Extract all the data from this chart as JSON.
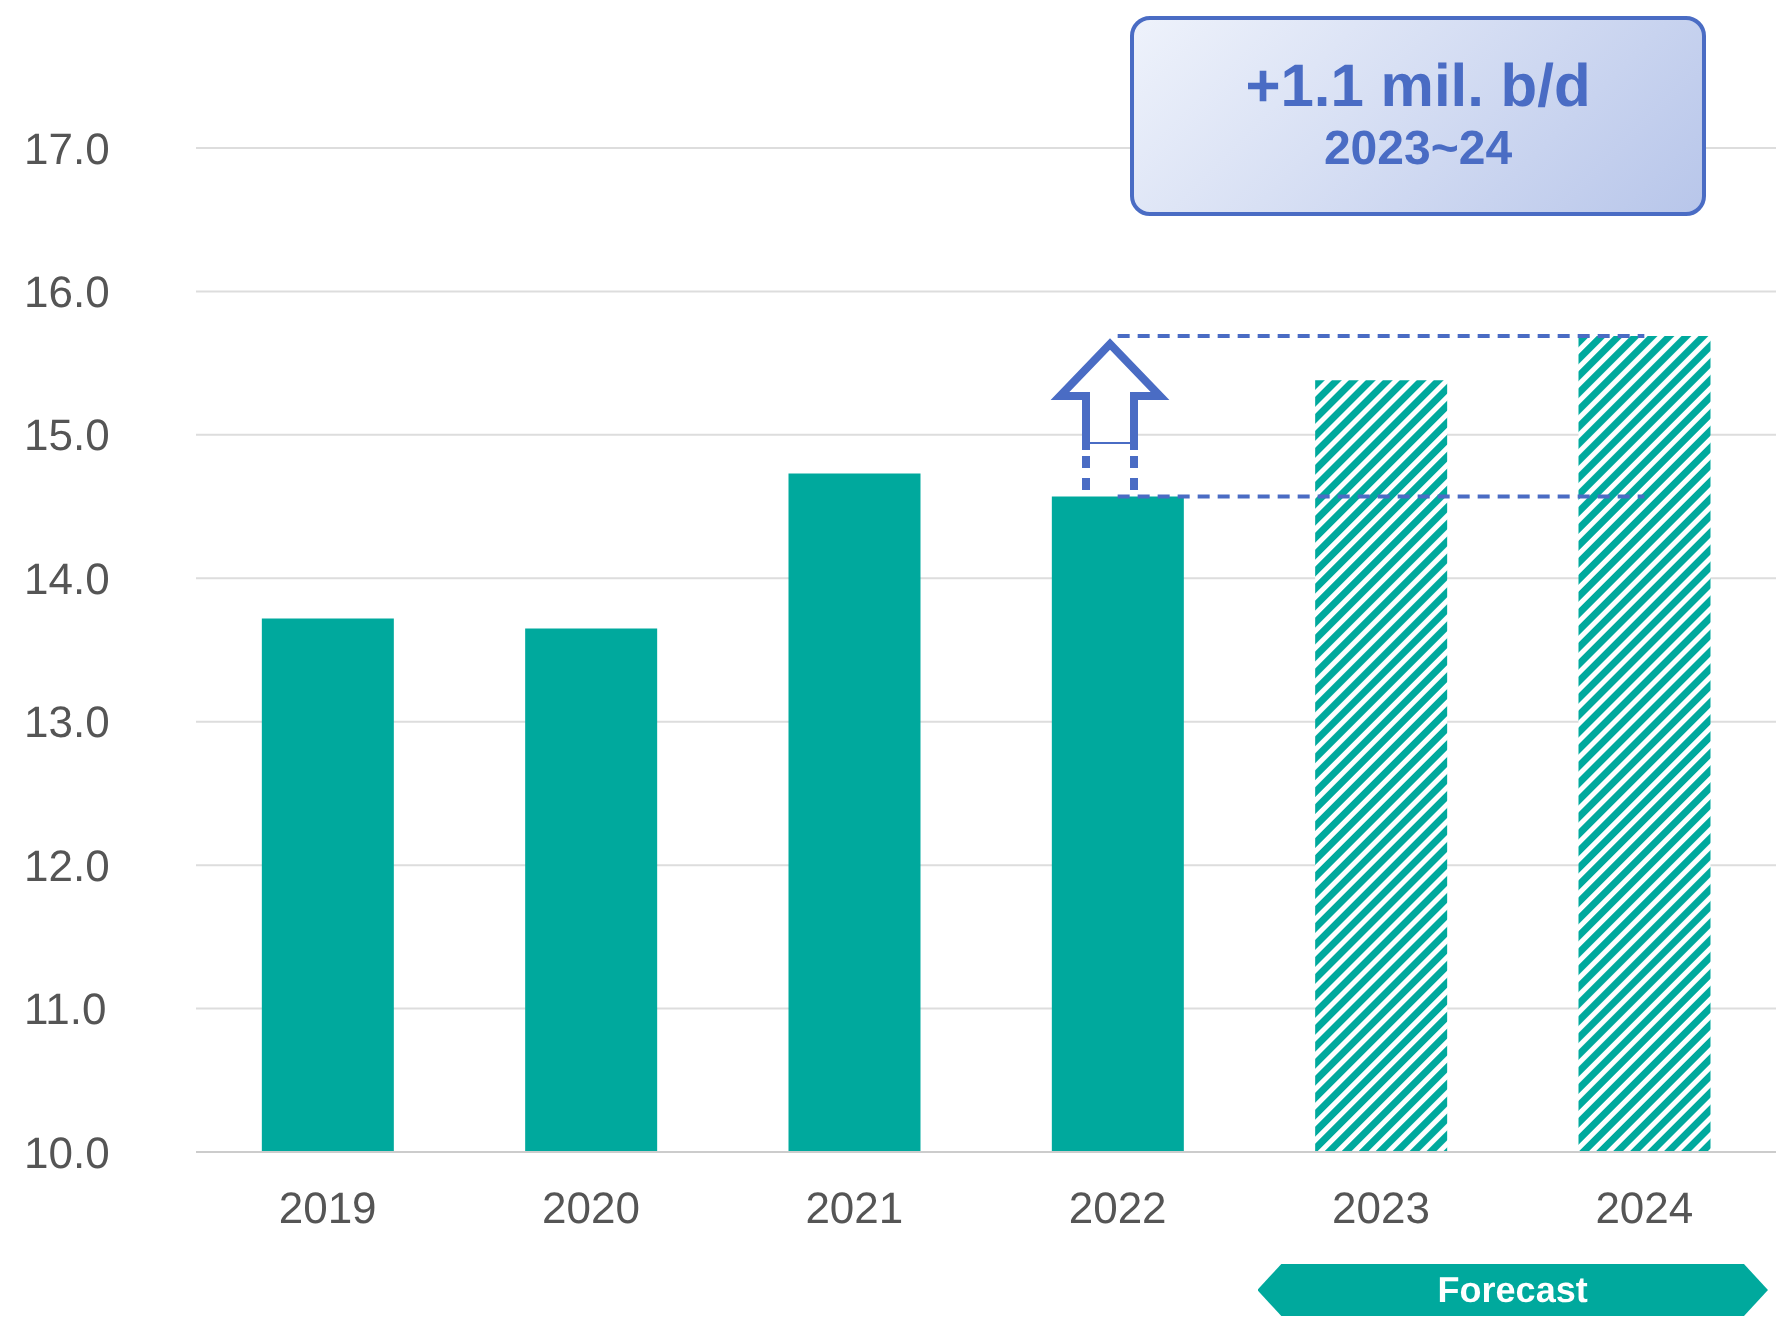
{
  "chart_data": {
    "type": "bar",
    "categories": [
      "2019",
      "2020",
      "2021",
      "2022",
      "2023",
      "2024"
    ],
    "series": [
      {
        "color": "#00a99d",
        "values": [
          13.72,
          13.65,
          14.73,
          14.57,
          null,
          null
        ]
      },
      {
        "color": "#00a99d",
        "values": [
          null,
          null,
          null,
          null,
          15.38,
          15.69
        ]
      }
    ],
    "stacked": true,
    "ylim": [
      10,
      17
    ],
    "yticks": [
      {
        "value": 10,
        "label": "10.0"
      },
      {
        "value": 11,
        "label": "11.0"
      },
      {
        "value": 12,
        "label": "12.0"
      },
      {
        "value": 13,
        "label": "13.0"
      },
      {
        "value": 14,
        "label": "14.0"
      },
      {
        "value": 15,
        "label": "15.0"
      },
      {
        "value": 16,
        "label": "16.0"
      },
      {
        "value": 17,
        "label": "17.0"
      }
    ],
    "grid": "y",
    "ref_lines": [
      {
        "axis": "y",
        "value": 15.69,
        "color": "#4a6cc4",
        "line_style": "dashed"
      },
      {
        "axis": "y",
        "value": 14.57,
        "color": "#4a6cc4",
        "line_style": "dashed"
      }
    ],
    "annotations": [
      "+1.1 mil. b/d",
      "2023~24",
      "Forecast"
    ]
  }
}
